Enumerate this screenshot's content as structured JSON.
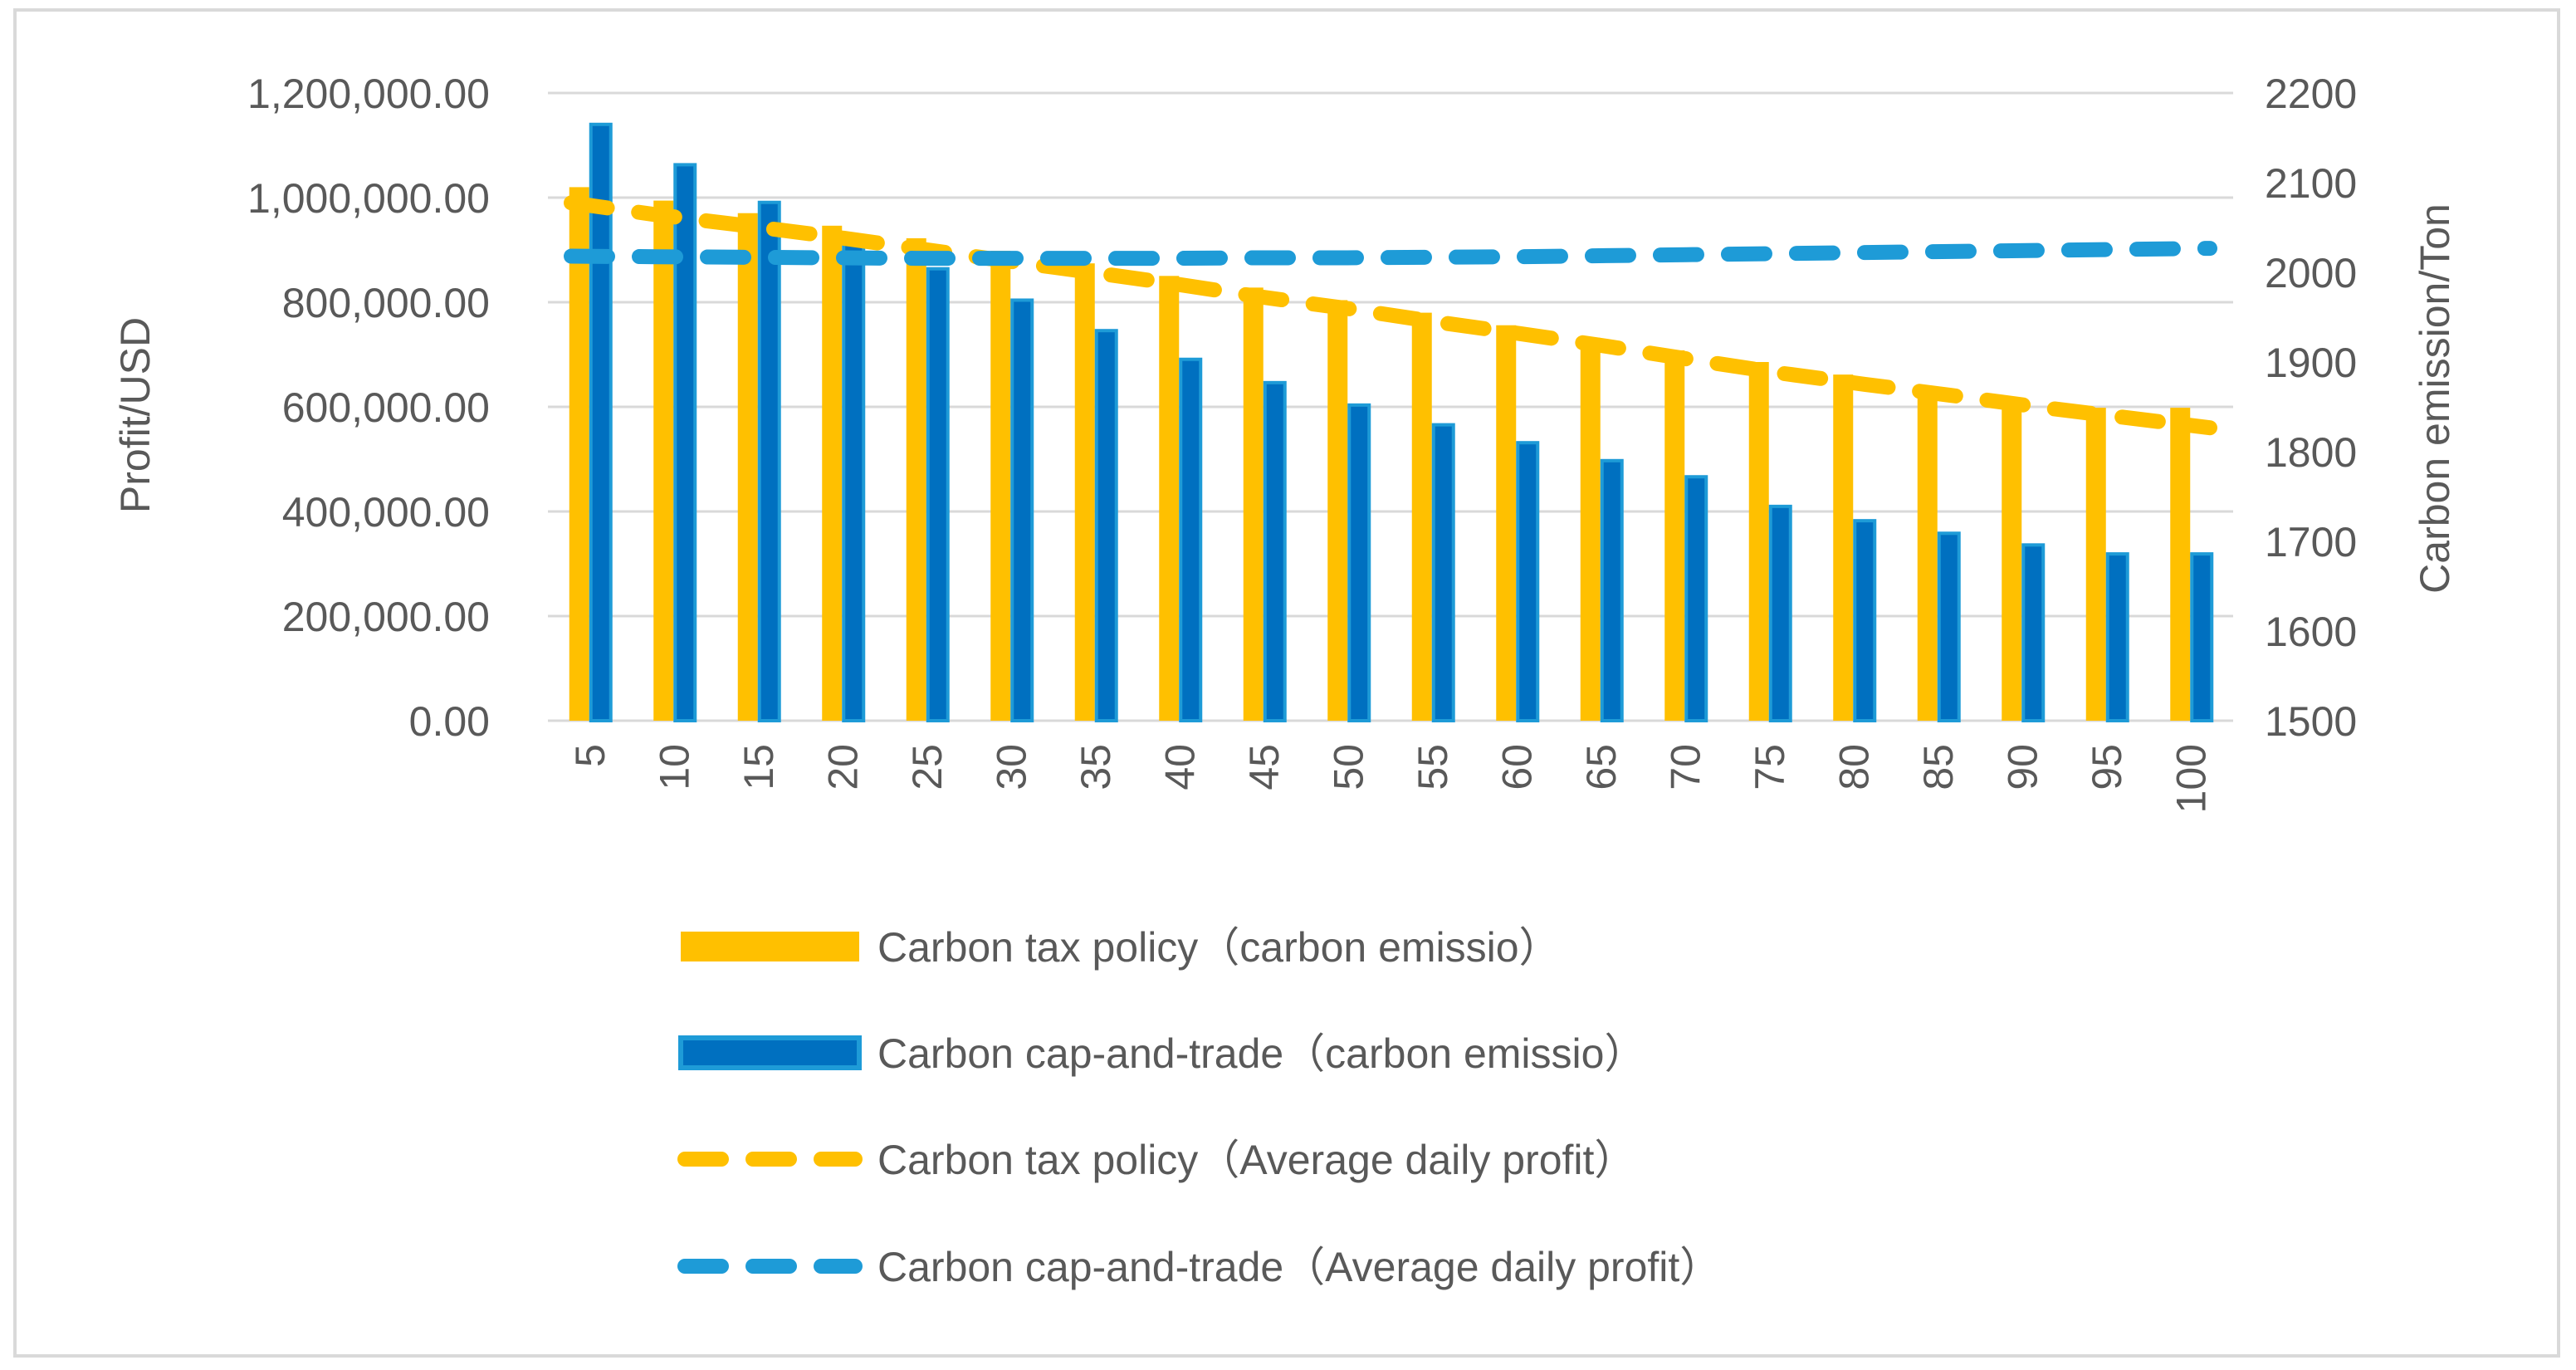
{
  "chart_data": {
    "type": "bar",
    "categories": [
      "5",
      "10",
      "15",
      "20",
      "25",
      "30",
      "35",
      "40",
      "45",
      "50",
      "55",
      "60",
      "65",
      "70",
      "75",
      "80",
      "85",
      "90",
      "95",
      "100"
    ],
    "series": [
      {
        "name": "Carbon tax policy（carbon emissio）",
        "kind": "bar",
        "axis": "right",
        "color": "#FFC000",
        "values": [
          2095,
          2080,
          2066,
          2052,
          2038,
          2024,
          2010,
          1996,
          1983,
          1969,
          1955,
          1941,
          1927,
          1913,
          1900,
          1886,
          1872,
          1858,
          1849,
          1849
        ]
      },
      {
        "name": "Carbon cap-and-trade（carbon emissio）",
        "kind": "bar",
        "axis": "right",
        "color": "#0070C0",
        "stroke": "#1E9BD7",
        "values": [
          2165,
          2120,
          2078,
          2040,
          2004,
          1969,
          1935,
          1903,
          1877,
          1852,
          1830,
          1810,
          1790,
          1772,
          1739,
          1723,
          1709,
          1696,
          1686,
          1686
        ]
      },
      {
        "name": "Carbon tax policy（Average daily profit）",
        "kind": "line",
        "axis": "left",
        "dash": true,
        "color": "#FFC000",
        "values": [
          990000,
          967000,
          947000,
          926000,
          903000,
          880000,
          858000,
          835000,
          810000,
          788000,
          763000,
          740000,
          716000,
          690000,
          665000,
          643000,
          622000,
          600000,
          580000,
          560000
        ]
      },
      {
        "name": "Carbon cap-and-trade（Average daily profit）",
        "kind": "line",
        "axis": "left",
        "dash": true,
        "color": "#1E9BD7",
        "values": [
          888000,
          887000,
          886000,
          885000,
          884000,
          884000,
          884000,
          884000,
          885000,
          885000,
          886000,
          887000,
          889000,
          891000,
          893000,
          895000,
          897000,
          899000,
          901000,
          903000
        ]
      }
    ],
    "y_left": {
      "label": "Profit/USD",
      "range": [
        0,
        1200000
      ],
      "ticks": [
        0,
        200000,
        400000,
        600000,
        800000,
        1000000,
        1200000
      ],
      "tick_labels": [
        "0.00",
        "200,000.00",
        "400,000.00",
        "600,000.00",
        "800,000.00",
        "1,000,000.00",
        "1,200,000.00"
      ]
    },
    "y_right": {
      "label": "Carbon emission/Ton",
      "range": [
        1500,
        2200
      ],
      "ticks": [
        1500,
        1600,
        1700,
        1800,
        1900,
        2000,
        2100,
        2200
      ],
      "tick_labels": [
        "1500",
        "1600",
        "1700",
        "1800",
        "1900",
        "2000",
        "2100",
        "2200"
      ]
    },
    "grid": true,
    "legend_position": "bottom",
    "title": ""
  }
}
